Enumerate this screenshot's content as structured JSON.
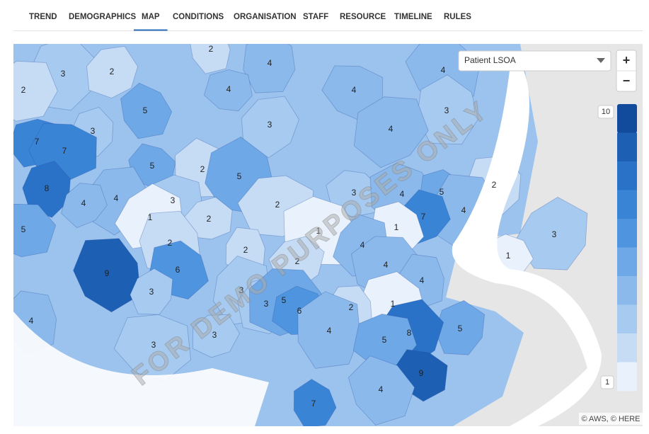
{
  "tabs": [
    "TREND",
    "DEMOGRAPHICS",
    "MAP",
    "CONDITIONS",
    "ORGANISATION",
    "STAFF",
    "RESOURCE",
    "TIMELINE",
    "RULES"
  ],
  "active_tab": 2,
  "map": {
    "dropdown": "Patient LSOA",
    "zoom_in": "+",
    "zoom_out": "−",
    "watermark": "FOR DEMO PURPOSES ONLY",
    "attribution": "© AWS, © HERE",
    "legend": {
      "max": 10,
      "min": 1,
      "colors": [
        "#e9f2fc",
        "#c6dcf5",
        "#a7caf0",
        "#8bb9eb",
        "#6ea8e6",
        "#4f94de",
        "#3a84d6",
        "#2a72c7",
        "#1c5fb3",
        "#124a9c"
      ]
    },
    "regions": [
      2,
      4,
      3,
      2,
      2,
      4,
      4,
      4,
      5,
      3,
      3,
      3,
      4,
      7,
      7,
      5,
      2,
      5,
      8,
      4,
      4,
      3,
      2,
      3,
      4,
      5,
      2,
      4,
      7,
      1,
      2,
      5,
      1,
      1,
      2,
      2,
      4,
      3,
      2,
      4,
      1,
      6,
      9,
      4,
      3,
      3,
      3,
      5,
      6,
      1,
      2,
      4,
      4,
      5,
      8,
      3,
      5,
      3,
      9,
      4,
      7
    ]
  }
}
